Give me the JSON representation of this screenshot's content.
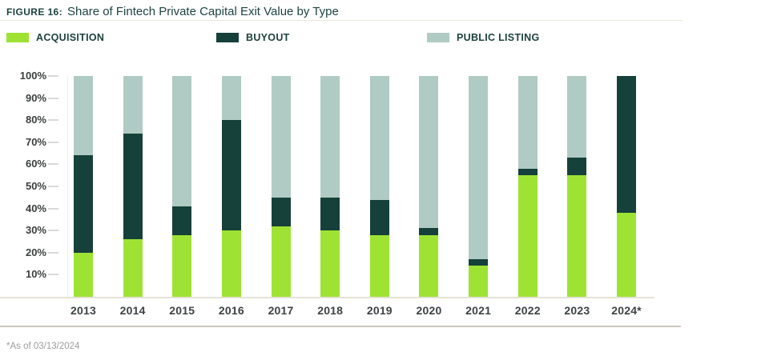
{
  "header": {
    "figure_label": "FIGURE 16:",
    "title": "Share of Fintech Private Capital Exit Value by Type"
  },
  "legend": [
    {
      "label": "ACQUISITION",
      "color": "#9ee334"
    },
    {
      "label": "BUYOUT",
      "color": "#16403a"
    },
    {
      "label": "PUBLIC LISTING",
      "color": "#b0cbc4"
    }
  ],
  "footnote": "*As of 03/13/2024",
  "chart_data": {
    "type": "bar",
    "subtype": "stacked-100-percent",
    "title": "Share of Fintech Private Capital Exit Value by Type",
    "xlabel": "",
    "ylabel": "",
    "ylim": [
      0,
      100
    ],
    "grid": false,
    "legend_position": "top",
    "y_ticks": [
      "100%",
      "90%",
      "80%",
      "70%",
      "60%",
      "50%",
      "40%",
      "30%",
      "20%",
      "10%"
    ],
    "categories": [
      "2013",
      "2014",
      "2015",
      "2016",
      "2017",
      "2018",
      "2019",
      "2020",
      "2021",
      "2022",
      "2023",
      "2024*"
    ],
    "series": [
      {
        "name": "ACQUISITION",
        "color": "#9ee334",
        "values": [
          20,
          26,
          28,
          30,
          32,
          30,
          28,
          28,
          14,
          55,
          55,
          38
        ]
      },
      {
        "name": "BUYOUT",
        "color": "#16403a",
        "values": [
          44,
          48,
          13,
          50,
          13,
          15,
          16,
          3,
          3,
          3,
          8,
          62
        ]
      },
      {
        "name": "PUBLIC LISTING",
        "color": "#b0cbc4",
        "values": [
          36,
          26,
          59,
          20,
          55,
          55,
          56,
          69,
          83,
          42,
          37,
          0
        ]
      }
    ]
  }
}
